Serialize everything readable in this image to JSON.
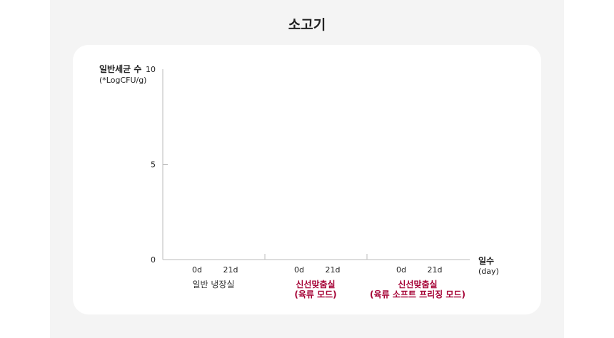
{
  "title": "소고기",
  "chart_data": {
    "type": "bar",
    "ylabel": "일반세균 수",
    "ylabel_unit": "(*LogCFU/g)",
    "xlabel": "일수",
    "xlabel_unit": "(day)",
    "ylim": [
      0,
      10
    ],
    "yticks": [
      "0",
      "5",
      "10"
    ],
    "groups": [
      {
        "label_lines": [
          "일반 냉장실"
        ],
        "color": "#333333",
        "categories": [
          "0d",
          "21d"
        ]
      },
      {
        "label_lines": [
          "신선맞춤실",
          "(육류 모드)"
        ],
        "color": "#a50034",
        "categories": [
          "0d",
          "21d"
        ]
      },
      {
        "label_lines": [
          "신선맞춤실",
          "(육류 소프트 프리징 모드)"
        ],
        "color": "#a50034",
        "categories": [
          "0d",
          "21d"
        ]
      }
    ],
    "grid": false
  }
}
